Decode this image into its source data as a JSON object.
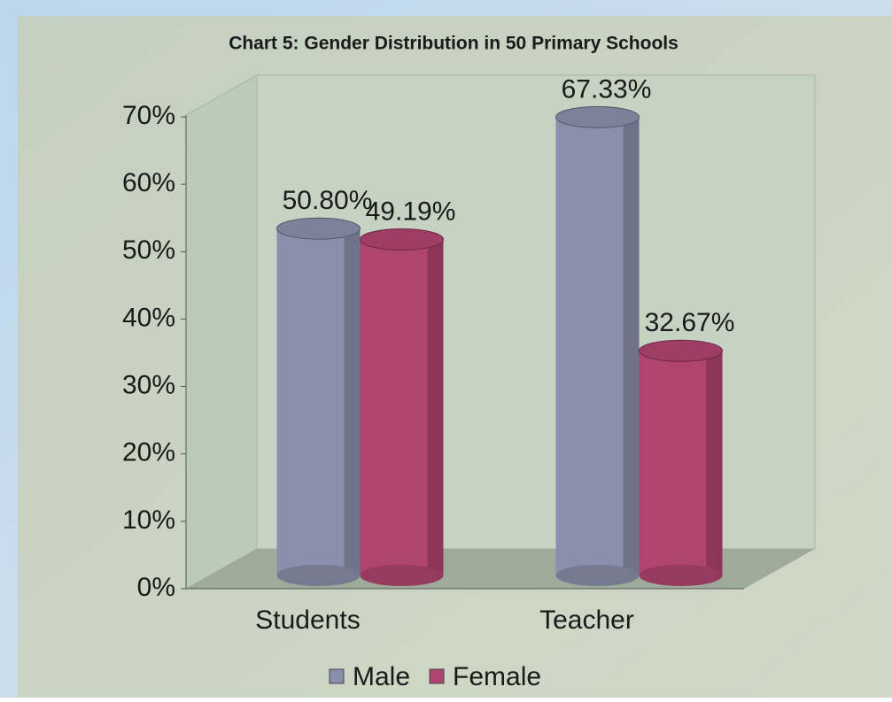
{
  "chart_data": {
    "type": "bar",
    "title": "Chart 5:  Gender Distribution in 50 Primary Schools",
    "categories": [
      "Students",
      "Teacher"
    ],
    "series": [
      {
        "name": "Male",
        "color": "#8a90ab",
        "values": [
          50.8,
          67.33
        ],
        "value_labels": [
          "50.80%",
          "67.33%"
        ]
      },
      {
        "name": "Female",
        "color": "#b04470",
        "values": [
          49.19,
          32.67
        ],
        "value_labels": [
          "49.19%",
          "32.67%"
        ]
      }
    ],
    "ylim": [
      0,
      70
    ],
    "yticks": [
      {
        "value": 0,
        "label": "0%"
      },
      {
        "value": 10,
        "label": "10%"
      },
      {
        "value": 20,
        "label": "20%"
      },
      {
        "value": 30,
        "label": "30%"
      },
      {
        "value": 40,
        "label": "40%"
      },
      {
        "value": 50,
        "label": "50%"
      },
      {
        "value": 60,
        "label": "60%"
      },
      {
        "value": 70,
        "label": "70%"
      }
    ],
    "legend": "bottom"
  }
}
